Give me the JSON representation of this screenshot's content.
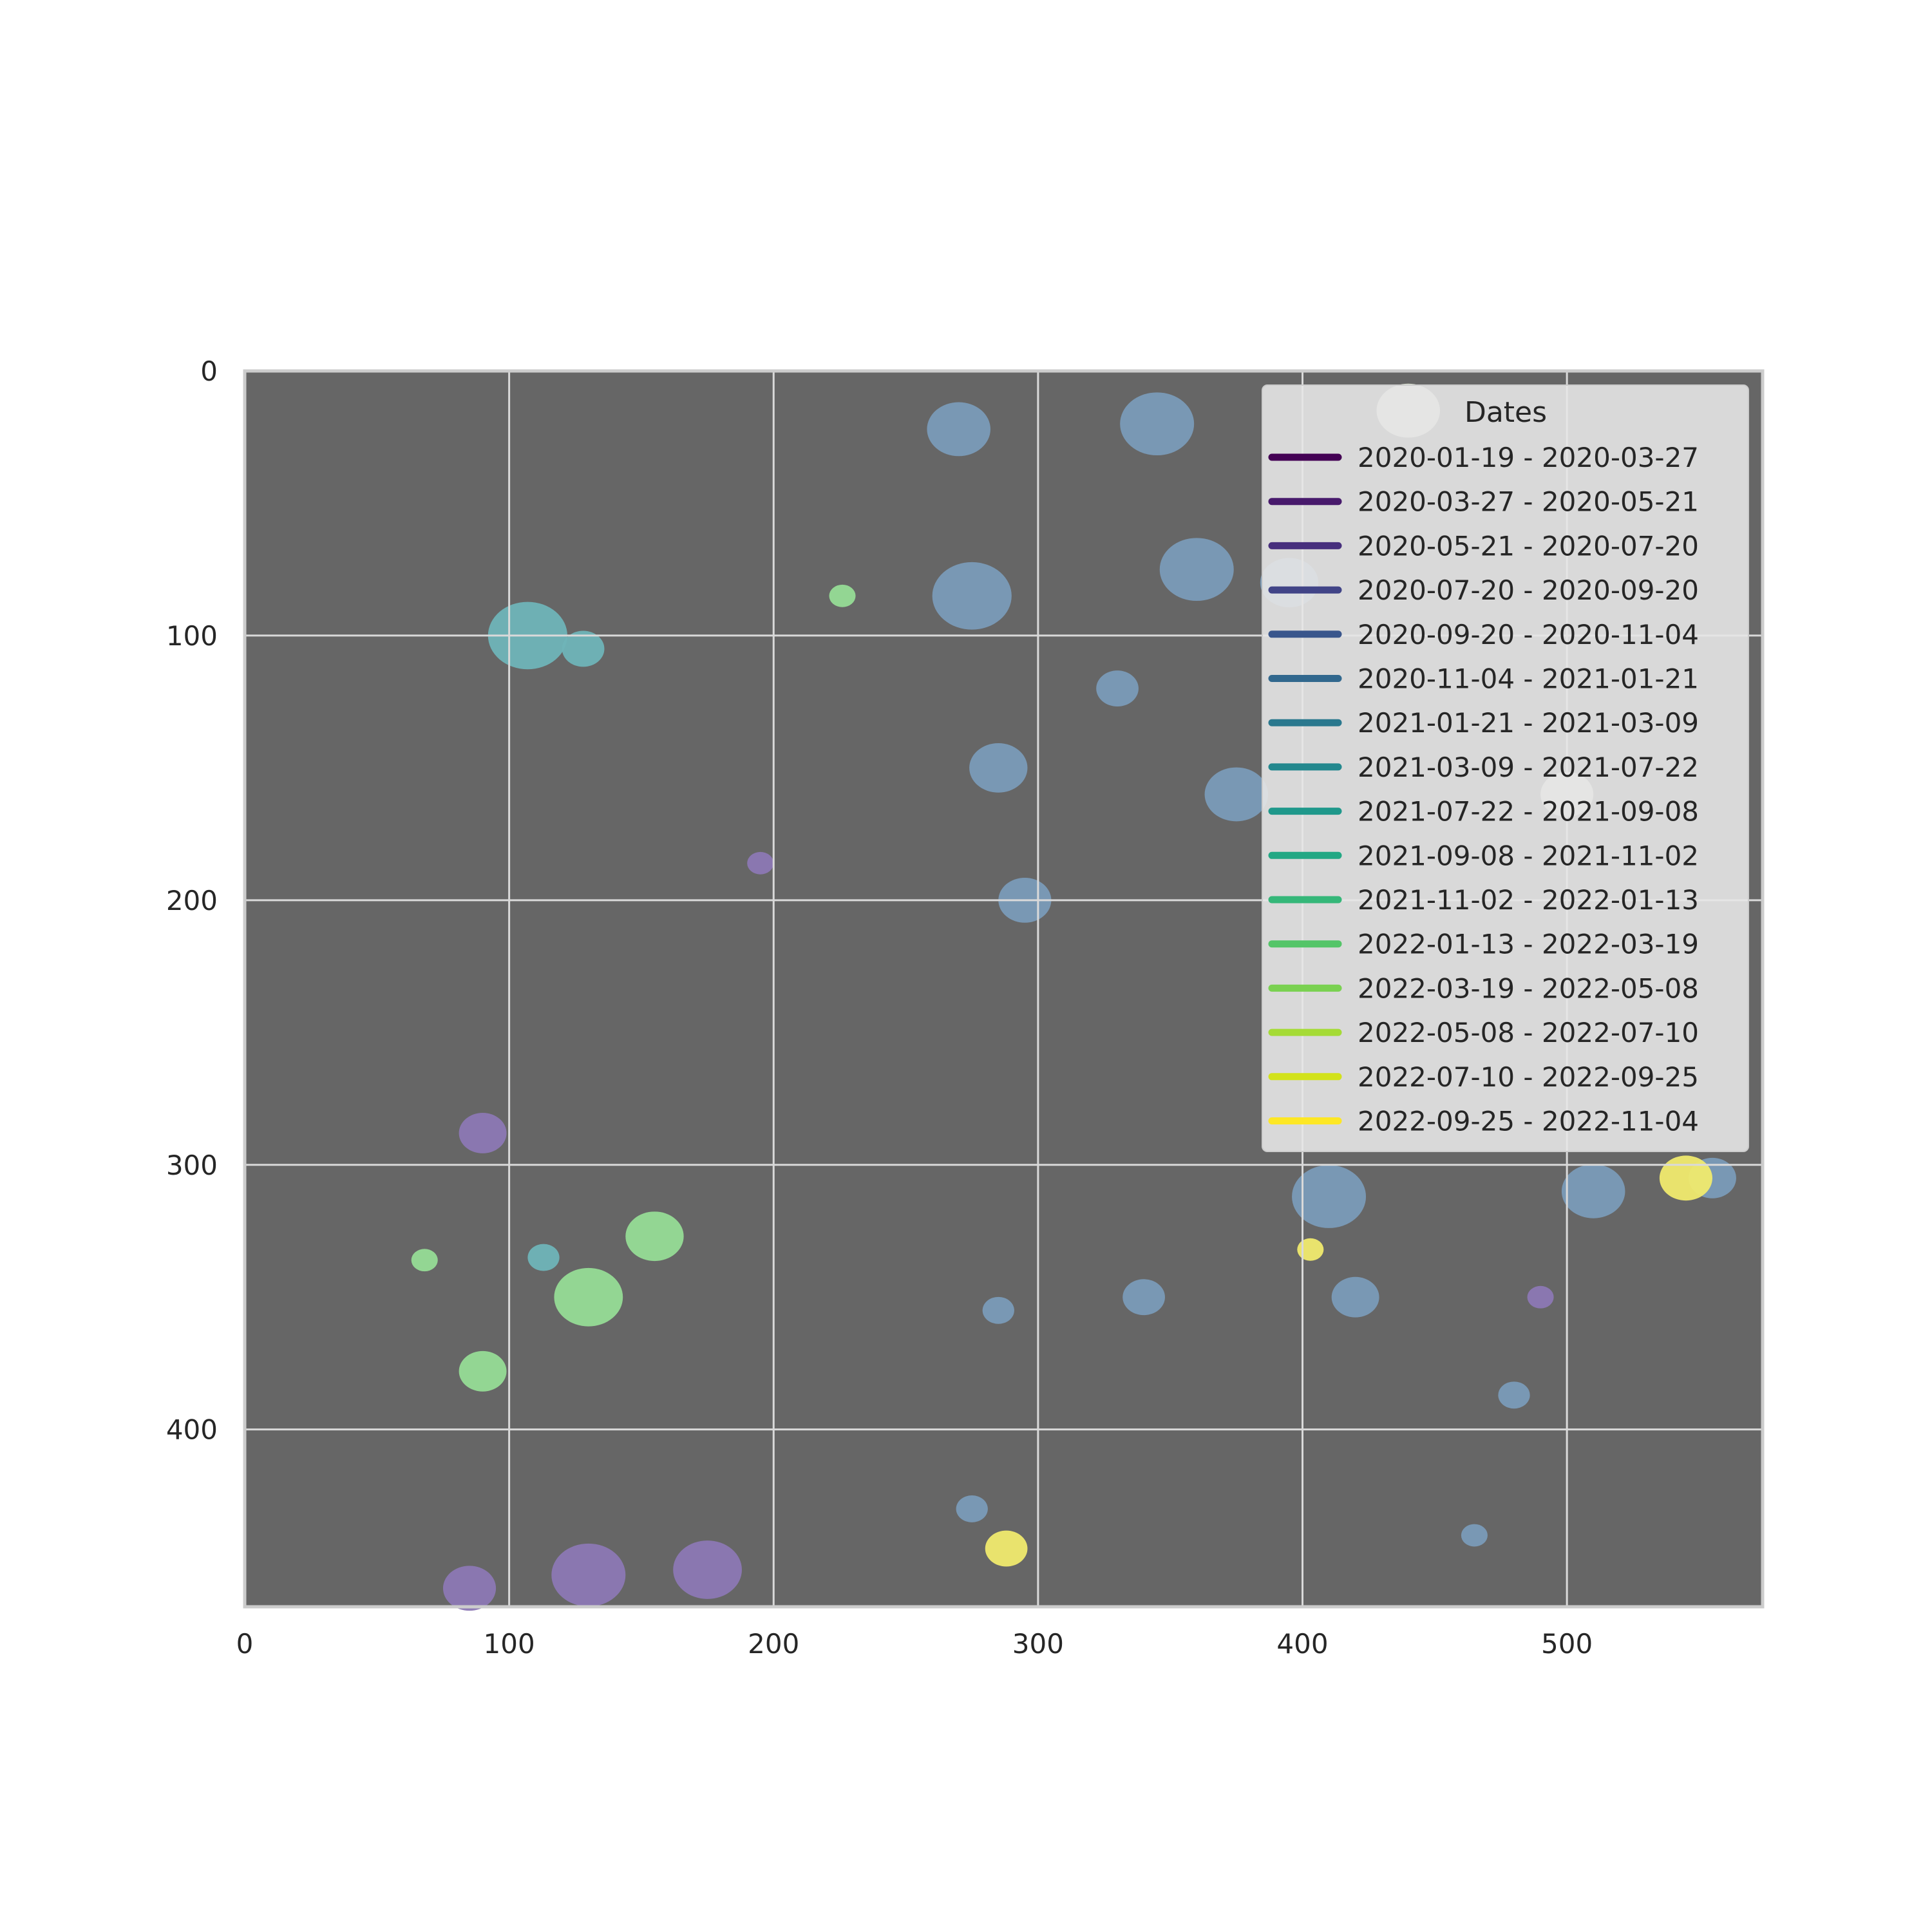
{
  "chart_data": {
    "type": "heatmap",
    "title": "",
    "xlabel": "",
    "ylabel": "",
    "xlim": [
      0,
      574
    ],
    "ylim": [
      467,
      0
    ],
    "x_ticks": [
      0,
      100,
      200,
      300,
      400,
      500
    ],
    "y_ticks": [
      0,
      100,
      200,
      300,
      400
    ],
    "grid": true,
    "background_color": "#666666",
    "legend": {
      "title": "Dates",
      "placement": "top-right",
      "entries": [
        {
          "label": "2020-01-19 - 2020-03-27",
          "color": "#440154"
        },
        {
          "label": "2020-03-27 - 2020-05-21",
          "color": "#481a6c"
        },
        {
          "label": "2020-05-21 - 2020-07-20",
          "color": "#472f7d"
        },
        {
          "label": "2020-07-20 - 2020-09-20",
          "color": "#414487"
        },
        {
          "label": "2020-09-20 - 2020-11-04",
          "color": "#39568c"
        },
        {
          "label": "2020-11-04 - 2021-01-21",
          "color": "#31688e"
        },
        {
          "label": "2021-01-21 - 2021-03-09",
          "color": "#2a788e"
        },
        {
          "label": "2021-03-09 - 2021-07-22",
          "color": "#23888e"
        },
        {
          "label": "2021-07-22 - 2021-09-08",
          "color": "#1f988b"
        },
        {
          "label": "2021-09-08 - 2021-11-02",
          "color": "#22a884"
        },
        {
          "label": "2021-11-02 - 2022-01-13",
          "color": "#35b779"
        },
        {
          "label": "2022-01-13 - 2022-03-19",
          "color": "#54c568"
        },
        {
          "label": "2022-03-19 - 2022-05-08",
          "color": "#7ad151"
        },
        {
          "label": "2022-05-08 - 2022-07-10",
          "color": "#a5db36"
        },
        {
          "label": "2022-07-10 - 2022-09-25",
          "color": "#d2e21b"
        },
        {
          "label": "2022-09-25 - 2022-11-04",
          "color": "#fde725"
        }
      ]
    },
    "regions": [
      {
        "x": 270,
        "y": 22,
        "r": 12,
        "color": "#7a9bb8"
      },
      {
        "x": 345,
        "y": 20,
        "r": 14,
        "color": "#7a9bb8"
      },
      {
        "x": 360,
        "y": 75,
        "r": 14,
        "color": "#7a9bb8"
      },
      {
        "x": 395,
        "y": 80,
        "r": 11,
        "color": "#7a9bb8"
      },
      {
        "x": 275,
        "y": 85,
        "r": 15,
        "color": "#7a9bb8"
      },
      {
        "x": 330,
        "y": 120,
        "r": 8,
        "color": "#7a9bb8"
      },
      {
        "x": 285,
        "y": 150,
        "r": 11,
        "color": "#7a9bb8"
      },
      {
        "x": 375,
        "y": 160,
        "r": 12,
        "color": "#7a9bb8"
      },
      {
        "x": 295,
        "y": 200,
        "r": 10,
        "color": "#7a9bb8"
      },
      {
        "x": 410,
        "y": 312,
        "r": 14,
        "color": "#7a9bb8"
      },
      {
        "x": 420,
        "y": 350,
        "r": 9,
        "color": "#7a9bb8"
      },
      {
        "x": 340,
        "y": 350,
        "r": 8,
        "color": "#7a9bb8"
      },
      {
        "x": 285,
        "y": 355,
        "r": 6,
        "color": "#7a9bb8"
      },
      {
        "x": 480,
        "y": 387,
        "r": 6,
        "color": "#7a9bb8"
      },
      {
        "x": 510,
        "y": 310,
        "r": 12,
        "color": "#7a9bb8"
      },
      {
        "x": 555,
        "y": 305,
        "r": 9,
        "color": "#7a9bb8"
      },
      {
        "x": 275,
        "y": 430,
        "r": 6,
        "color": "#7a9bb8"
      },
      {
        "x": 465,
        "y": 440,
        "r": 5,
        "color": "#7a9bb8"
      },
      {
        "x": 107,
        "y": 100,
        "r": 15,
        "color": "#6fb4b8"
      },
      {
        "x": 128,
        "y": 105,
        "r": 8,
        "color": "#6fb4b8"
      },
      {
        "x": 113,
        "y": 335,
        "r": 6,
        "color": "#6fb4b8"
      },
      {
        "x": 130,
        "y": 350,
        "r": 13,
        "color": "#96dc96"
      },
      {
        "x": 155,
        "y": 327,
        "r": 11,
        "color": "#96dc96"
      },
      {
        "x": 90,
        "y": 378,
        "r": 9,
        "color": "#96dc96"
      },
      {
        "x": 68,
        "y": 336,
        "r": 5,
        "color": "#96dc96"
      },
      {
        "x": 226,
        "y": 85,
        "r": 5,
        "color": "#96dc96"
      },
      {
        "x": 90,
        "y": 288,
        "r": 9,
        "color": "#8c78b4"
      },
      {
        "x": 130,
        "y": 455,
        "r": 14,
        "color": "#8c78b4"
      },
      {
        "x": 175,
        "y": 453,
        "r": 13,
        "color": "#8c78b4"
      },
      {
        "x": 85,
        "y": 460,
        "r": 10,
        "color": "#8c78b4"
      },
      {
        "x": 195,
        "y": 186,
        "r": 5,
        "color": "#8c78b4"
      },
      {
        "x": 490,
        "y": 350,
        "r": 5,
        "color": "#8c78b4"
      },
      {
        "x": 545,
        "y": 305,
        "r": 10,
        "color": "#f0ea6e"
      },
      {
        "x": 288,
        "y": 445,
        "r": 8,
        "color": "#f0ea6e"
      },
      {
        "x": 403,
        "y": 332,
        "r": 5,
        "color": "#f0ea6e"
      },
      {
        "x": 440,
        "y": 15,
        "r": 12,
        "color": "#dfe7d6"
      },
      {
        "x": 500,
        "y": 160,
        "r": 10,
        "color": "#dfe7d6"
      }
    ]
  }
}
